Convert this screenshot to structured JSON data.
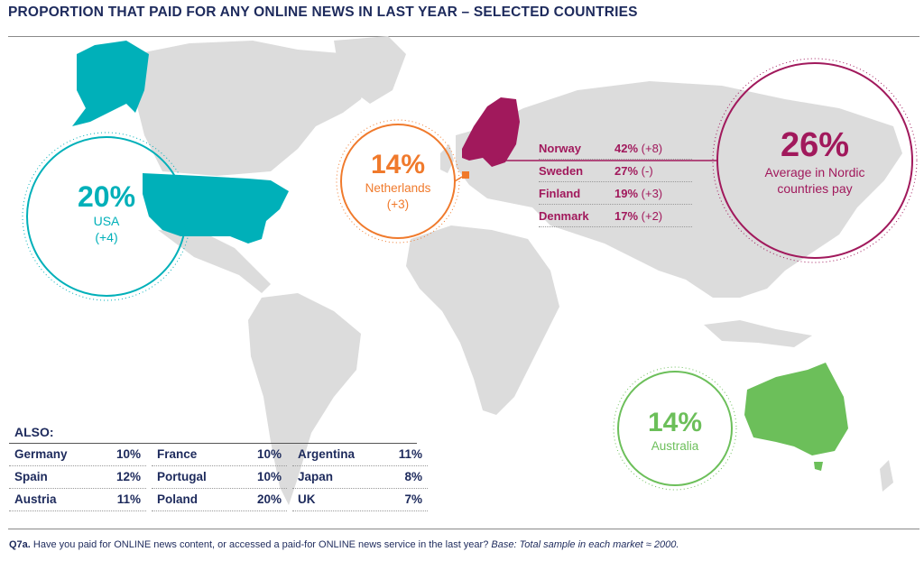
{
  "title": "PROPORTION THAT PAID FOR ANY ONLINE NEWS IN LAST YEAR – SELECTED COUNTRIES",
  "colors": {
    "usa": "#00b0b9",
    "netherlands": "#f07a2c",
    "nordic": "#a1195c",
    "australia": "#6cbf5a",
    "land": "#dcdcdc",
    "text": "#1d2a5c"
  },
  "callouts": {
    "usa": {
      "value": "20%",
      "name": "USA",
      "change": "(+4)"
    },
    "netherlands": {
      "value": "14%",
      "name": "Netherlands",
      "change": "(+3)"
    },
    "nordic": {
      "value": "26%",
      "line1": "Average in Nordic",
      "line2": "countries pay"
    },
    "australia": {
      "value": "14%",
      "name": "Australia"
    }
  },
  "nordic_countries": [
    {
      "country": "Norway",
      "pct": "42%",
      "change": "(+8)"
    },
    {
      "country": "Sweden",
      "pct": "27%",
      "change": "(-)"
    },
    {
      "country": "Finland",
      "pct": "19%",
      "change": "(+3)"
    },
    {
      "country": "Denmark",
      "pct": "17%",
      "change": "(+2)"
    }
  ],
  "also": {
    "heading": "ALSO:",
    "columns": [
      [
        {
          "country": "Germany",
          "pct": "10%"
        },
        {
          "country": "Spain",
          "pct": "12%"
        },
        {
          "country": "Austria",
          "pct": "11%"
        }
      ],
      [
        {
          "country": "France",
          "pct": "10%"
        },
        {
          "country": "Portugal",
          "pct": "10%"
        },
        {
          "country": "Poland",
          "pct": "20%"
        }
      ],
      [
        {
          "country": "Argentina",
          "pct": "11%"
        },
        {
          "country": "Japan",
          "pct": "8%"
        },
        {
          "country": "UK",
          "pct": "7%"
        }
      ]
    ]
  },
  "footnote": {
    "code": "Q7a.",
    "question": "Have you paid for ONLINE news content, or accessed a paid-for ONLINE news service in the last year?",
    "base": "Base: Total sample in each market ≈ 2000."
  }
}
